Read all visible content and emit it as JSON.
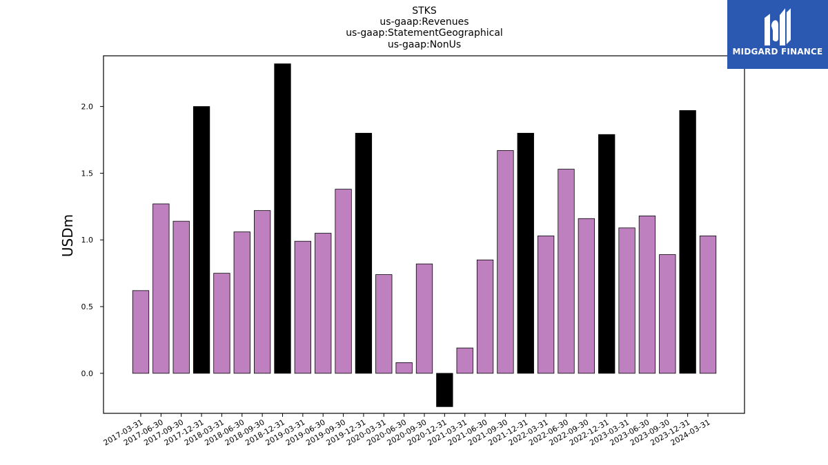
{
  "logo": {
    "text": "MIDGARD FINANCE"
  },
  "chart_data": {
    "type": "bar",
    "title_lines": [
      "STKS",
      "us-gaap:Revenues",
      "us-gaap:StatementGeographical",
      "us-gaap:NonUs"
    ],
    "xlabel": "",
    "ylabel": "USDm",
    "ylim": [
      -0.3,
      2.38
    ],
    "yticks": [
      0.0,
      0.5,
      1.0,
      1.5,
      2.0
    ],
    "ytick_labels": [
      "0.0",
      "0.5",
      "1.0",
      "1.5",
      "2.0"
    ],
    "grid": false,
    "legend": "none",
    "colors": {
      "quarter": "#bf80bf",
      "year_end": "#000000",
      "edge": "#000000"
    },
    "categories": [
      "2017-03-31",
      "2017-06-30",
      "2017-09-30",
      "2017-12-31",
      "2018-03-31",
      "2018-06-30",
      "2018-09-30",
      "2018-12-31",
      "2019-03-31",
      "2019-06-30",
      "2019-09-30",
      "2019-12-31",
      "2020-03-31",
      "2020-06-30",
      "2020-09-30",
      "2020-12-31",
      "2021-03-31",
      "2021-06-30",
      "2021-09-30",
      "2021-12-31",
      "2022-03-31",
      "2022-06-30",
      "2022-09-30",
      "2022-12-31",
      "2023-03-31",
      "2023-06-30",
      "2023-09-30",
      "2023-12-31",
      "2024-03-31"
    ],
    "values": [
      0.62,
      1.27,
      1.14,
      2.0,
      0.75,
      1.06,
      1.22,
      2.32,
      0.99,
      1.05,
      1.38,
      1.8,
      0.74,
      0.08,
      0.82,
      -0.25,
      0.19,
      0.85,
      1.67,
      1.8,
      1.03,
      1.53,
      1.16,
      1.79,
      1.09,
      1.18,
      0.89,
      1.97,
      1.03
    ]
  }
}
